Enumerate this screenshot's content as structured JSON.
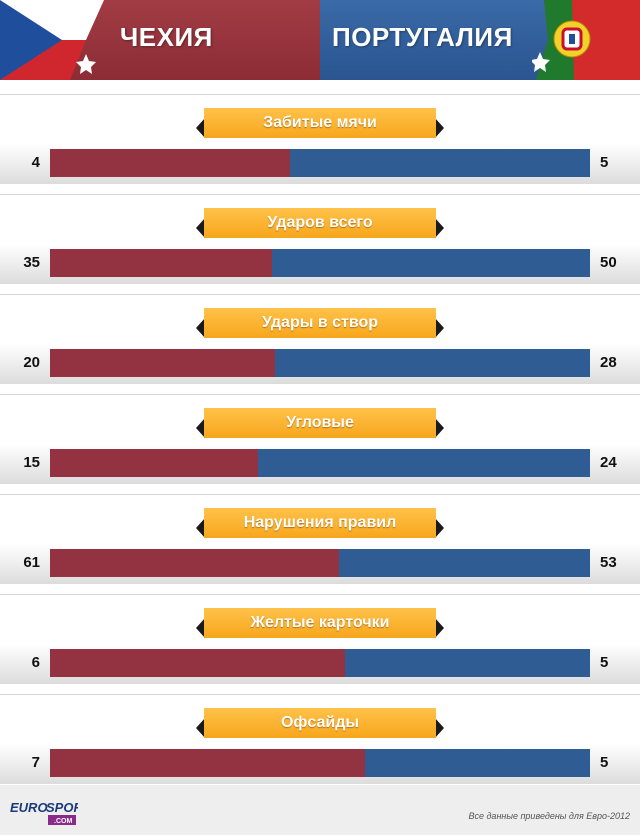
{
  "header": {
    "team_left": "ЧЕХИЯ",
    "team_right": "ПОРТУГАЛИЯ",
    "colors": {
      "left": "#933240",
      "right": "#2e5c93"
    },
    "flags": [
      "czech-flag-icon",
      "portugal-flag-icon"
    ]
  },
  "chart_data": {
    "type": "bar",
    "categories": [
      "Забитые мячи",
      "Ударов всего",
      "Удары в створ",
      "Угловые",
      "Нарушения правил",
      "Желтые карточки",
      "Офсайды"
    ],
    "series": [
      {
        "name": "ЧЕХИЯ",
        "values": [
          4,
          35,
          20,
          15,
          61,
          6,
          7
        ],
        "color": "#933240"
      },
      {
        "name": "ПОРТУГАЛИЯ",
        "values": [
          5,
          50,
          28,
          24,
          53,
          5,
          5
        ],
        "color": "#2e5c93"
      }
    ]
  },
  "footer": {
    "logo_text": "EUROSPORT",
    "logo_sub": ".COM",
    "note": "Все данные приведены для Евро-2012"
  }
}
